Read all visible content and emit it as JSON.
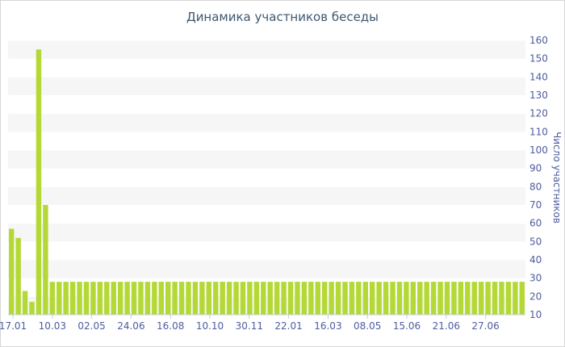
{
  "chart_data": {
    "type": "bar",
    "title": "Динамика участников беседы",
    "ylabel": "Число участников",
    "ylim": [
      10,
      160
    ],
    "y_ticks": [
      10,
      20,
      30,
      40,
      50,
      60,
      70,
      80,
      90,
      100,
      110,
      120,
      130,
      140,
      150,
      160
    ],
    "x_tick_labels": [
      "17.01",
      "10.03",
      "02.05",
      "24.06",
      "16.08",
      "10.10",
      "30.11",
      "22.01",
      "16.03",
      "08.05",
      "15.06",
      "21.06",
      "27.06"
    ],
    "grid": "alternating horizontal bands",
    "bar_color": "#b4d936",
    "values": [
      57,
      52,
      23,
      17,
      155,
      70,
      28,
      28,
      28,
      28,
      28,
      28,
      28,
      28,
      28,
      28,
      28,
      28,
      28,
      28,
      28,
      28,
      28,
      28,
      28,
      28,
      28,
      28,
      28,
      28,
      28,
      28,
      28,
      28,
      28,
      28,
      28,
      28,
      28,
      28,
      28,
      28,
      28,
      28,
      28,
      28,
      28,
      28,
      28,
      28,
      28,
      28,
      28,
      28,
      28,
      28,
      28,
      28,
      28,
      28,
      28,
      28,
      28,
      28,
      28,
      28,
      28,
      28,
      28,
      28,
      28,
      28,
      28,
      28,
      28,
      28
    ]
  }
}
